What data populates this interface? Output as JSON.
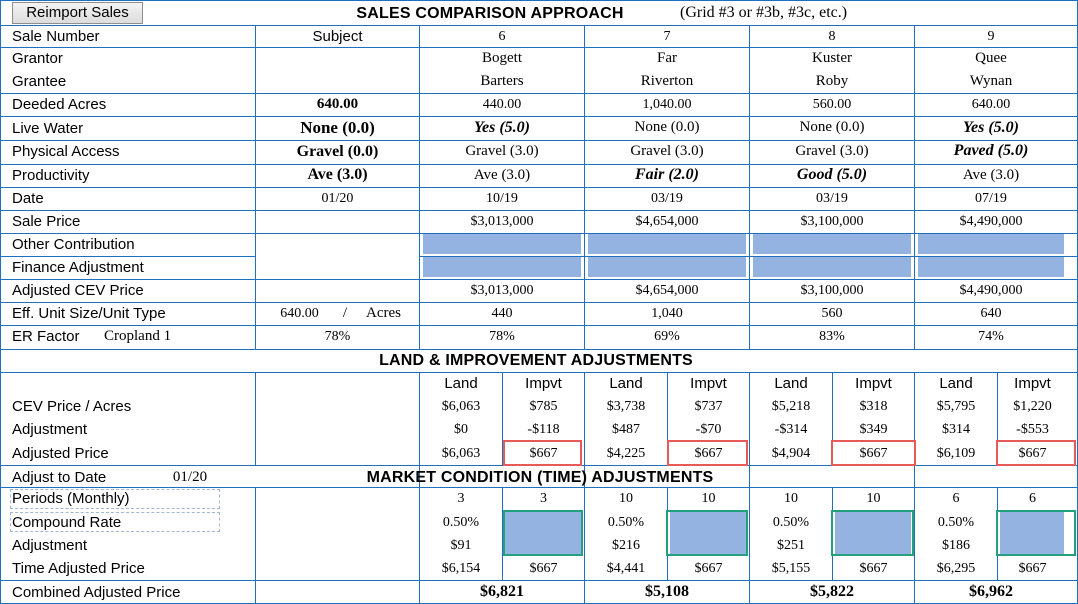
{
  "button_reimport": "Reimport Sales",
  "title": "SALES COMPARISON APPROACH",
  "title_note": "(Grid #3 or #3b, #3c, etc.)",
  "subject_header": "Subject",
  "rows": {
    "sale_number": "Sale Number",
    "grantor": "Grantor",
    "grantee": "Grantee",
    "deeded_acres": "Deeded Acres",
    "live_water": "Live Water",
    "physical_access": "Physical Access",
    "productivity": "Productivity",
    "date": "Date",
    "sale_price": "Sale Price",
    "other_contribution": "Other Contribution",
    "finance_adjustment": "Finance Adjustment",
    "adjusted_cev_price": "Adjusted CEV Price",
    "eff_unit": "Eff. Unit Size/Unit Type",
    "er_factor": "ER Factor",
    "er_type": "Cropland 1"
  },
  "subject": {
    "deeded_acres": "640.00",
    "live_water": "None (0.0)",
    "physical_access": "Gravel (0.0)",
    "productivity": "Ave (3.0)",
    "date": "01/20",
    "eff_size": "640.00",
    "eff_slash": "/",
    "eff_unit": "Acres",
    "er": "78%"
  },
  "sales": [
    {
      "number": "6",
      "grantor": "Bogett",
      "grantee": "Barters",
      "acres": "440.00",
      "live_water": "Yes (5.0)",
      "access": "Gravel (3.0)",
      "productivity": "Ave (3.0)",
      "date": "10/19",
      "price": "$3,013,000",
      "adj_cev": "$3,013,000",
      "eff_size": "440",
      "er": "78%"
    },
    {
      "number": "7",
      "grantor": "Far",
      "grantee": "Riverton",
      "acres": "1,040.00",
      "live_water": "None (0.0)",
      "access": "Gravel (3.0)",
      "productivity": "Fair (2.0)",
      "date": "03/19",
      "price": "$4,654,000",
      "adj_cev": "$4,654,000",
      "eff_size": "1,040",
      "er": "69%"
    },
    {
      "number": "8",
      "grantor": "Kuster",
      "grantee": "Roby",
      "acres": "560.00",
      "live_water": "None (0.0)",
      "access": "Gravel (3.0)",
      "productivity": "Good (5.0)",
      "date": "03/19",
      "price": "$3,100,000",
      "adj_cev": "$3,100,000",
      "eff_size": "560",
      "er": "83%"
    },
    {
      "number": "9",
      "grantor": "Quee",
      "grantee": "Wynan",
      "acres": "640.00",
      "live_water": "Yes (5.0)",
      "access": "Paved (5.0)",
      "productivity": "Ave (3.0)",
      "date": "07/19",
      "price": "$4,490,000",
      "adj_cev": "$4,490,000",
      "eff_size": "640",
      "er": "74%"
    }
  ],
  "land_section": {
    "title": "LAND & IMPROVEMENT ADJUSTMENTS",
    "col_land": "Land",
    "col_impvt": "Impvt",
    "row_cev": "CEV Price / Acres",
    "row_adjustment": "Adjustment",
    "row_adjusted": "Adjusted Price",
    "data": [
      {
        "land": "$6,063",
        "impvt": "$785",
        "land_adj": "$0",
        "impvt_adj": "-$118",
        "land_price": "$6,063",
        "impvt_price": "$667"
      },
      {
        "land": "$3,738",
        "impvt": "$737",
        "land_adj": "$487",
        "impvt_adj": "-$70",
        "land_price": "$4,225",
        "impvt_price": "$667"
      },
      {
        "land": "$5,218",
        "impvt": "$318",
        "land_adj": "-$314",
        "impvt_adj": "$349",
        "land_price": "$4,904",
        "impvt_price": "$667"
      },
      {
        "land": "$5,795",
        "impvt": "$1,220",
        "land_adj": "$314",
        "impvt_adj": "-$553",
        "land_price": "$6,109",
        "impvt_price": "$667"
      }
    ]
  },
  "market_section": {
    "adjust_to_date_label": "Adjust to Date",
    "adjust_to_date_value": "01/20",
    "title": "MARKET CONDITION (TIME) ADJUSTMENTS",
    "row_periods": "Periods (Monthly)",
    "row_rate": "Compound Rate",
    "row_adjustment": "Adjustment",
    "row_time_adj": "Time Adjusted Price",
    "row_combined": "Combined Adjusted Price",
    "data": [
      {
        "land_period": "3",
        "impvt_period": "3",
        "rate": "0.50%",
        "adj": "$91",
        "land_time": "$6,154",
        "impvt_time": "$667",
        "combined": "$6,821"
      },
      {
        "land_period": "10",
        "impvt_period": "10",
        "rate": "0.50%",
        "adj": "$216",
        "land_time": "$4,441",
        "impvt_time": "$667",
        "combined": "$5,108"
      },
      {
        "land_period": "10",
        "impvt_period": "10",
        "rate": "0.50%",
        "adj": "$251",
        "land_time": "$5,155",
        "impvt_time": "$667",
        "combined": "$5,822"
      },
      {
        "land_period": "6",
        "impvt_period": "6",
        "rate": "0.50%",
        "adj": "$186",
        "land_time": "$6,295",
        "impvt_time": "$667",
        "combined": "$6,962"
      }
    ]
  },
  "colors": {
    "grid_line": "#1f6fbf",
    "input_fill": "#94b3e0",
    "highlight_red": "#e85a5a",
    "highlight_green": "#24a07e"
  }
}
